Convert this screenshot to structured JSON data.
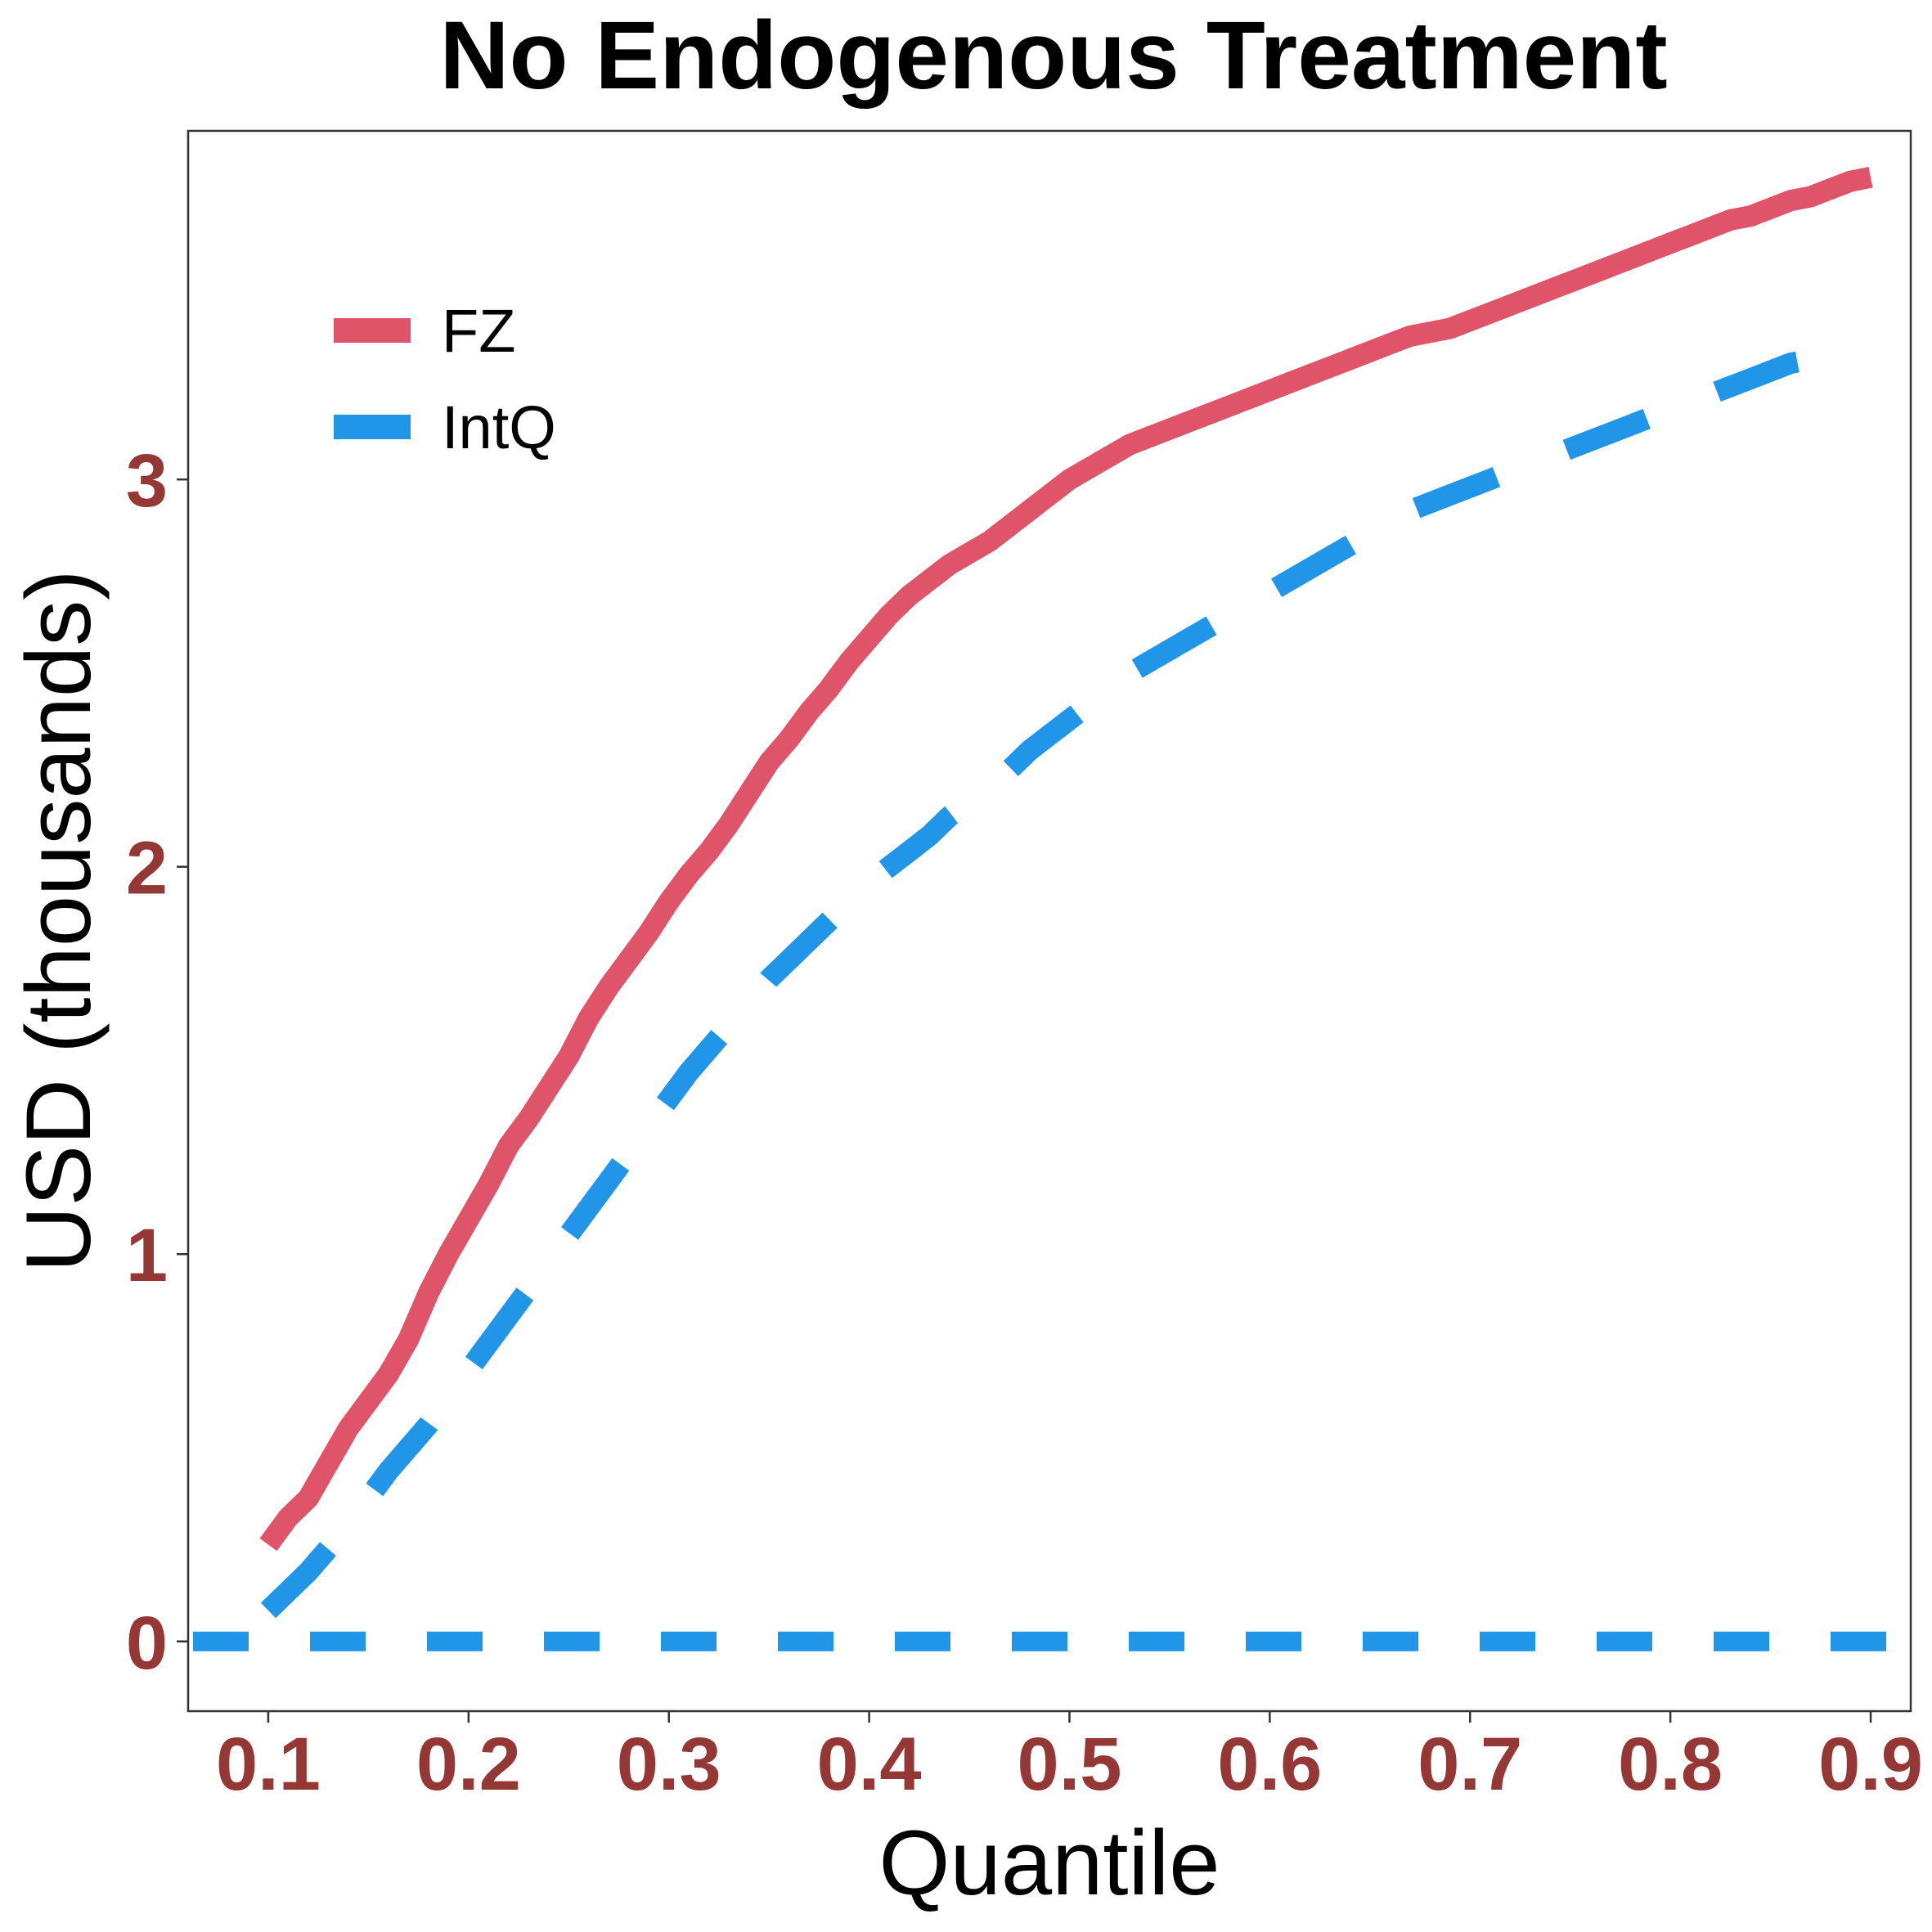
{
  "chart_data": {
    "type": "line",
    "title": "No Endogenous Treatment",
    "xlabel": "Quantile",
    "ylabel": "USD (thousands)",
    "xlim": [
      0.06,
      0.92
    ],
    "ylim": [
      -0.18,
      3.9
    ],
    "xticks": [
      0.1,
      0.2,
      0.3,
      0.4,
      0.5,
      0.6,
      0.7,
      0.8,
      0.9
    ],
    "xtick_labels": [
      "0.1",
      "0.2",
      "0.3",
      "0.4",
      "0.5",
      "0.6",
      "0.7",
      "0.8",
      "0.9"
    ],
    "yticks": [
      0,
      1,
      2,
      3
    ],
    "ytick_labels": [
      "0",
      "1",
      "2",
      "3"
    ],
    "grid": false,
    "legend_position": "top-left",
    "reference_line": {
      "y": 0,
      "style": "dashed",
      "color": "#2196e8"
    },
    "series": [
      {
        "name": "FZ",
        "style": "solid",
        "color": "#e05469",
        "x": [
          0.1,
          0.11,
          0.12,
          0.13,
          0.14,
          0.15,
          0.16,
          0.17,
          0.18,
          0.19,
          0.2,
          0.21,
          0.22,
          0.23,
          0.24,
          0.25,
          0.26,
          0.27,
          0.28,
          0.29,
          0.3,
          0.31,
          0.32,
          0.33,
          0.34,
          0.35,
          0.36,
          0.37,
          0.38,
          0.39,
          0.4,
          0.41,
          0.42,
          0.43,
          0.44,
          0.45,
          0.46,
          0.47,
          0.48,
          0.49,
          0.5,
          0.51,
          0.52,
          0.53,
          0.54,
          0.55,
          0.56,
          0.57,
          0.58,
          0.59,
          0.6,
          0.61,
          0.62,
          0.63,
          0.64,
          0.65,
          0.66,
          0.67,
          0.68,
          0.69,
          0.7,
          0.71,
          0.72,
          0.73,
          0.74,
          0.75,
          0.76,
          0.77,
          0.78,
          0.79,
          0.8,
          0.81,
          0.82,
          0.83,
          0.84,
          0.85,
          0.86,
          0.87,
          0.88,
          0.89,
          0.9
        ],
        "values": [
          0.25,
          0.32,
          0.37,
          0.46,
          0.55,
          0.62,
          0.69,
          0.78,
          0.9,
          1.0,
          1.09,
          1.18,
          1.28,
          1.35,
          1.43,
          1.51,
          1.61,
          1.69,
          1.76,
          1.83,
          1.91,
          1.98,
          2.04,
          2.11,
          2.19,
          2.27,
          2.33,
          2.4,
          2.46,
          2.53,
          2.59,
          2.65,
          2.7,
          2.74,
          2.78,
          2.81,
          2.84,
          2.88,
          2.92,
          2.96,
          3.0,
          3.03,
          3.06,
          3.09,
          3.11,
          3.13,
          3.15,
          3.17,
          3.19,
          3.21,
          3.23,
          3.25,
          3.27,
          3.29,
          3.31,
          3.33,
          3.35,
          3.37,
          3.38,
          3.39,
          3.41,
          3.43,
          3.45,
          3.47,
          3.49,
          3.51,
          3.53,
          3.55,
          3.57,
          3.59,
          3.61,
          3.63,
          3.65,
          3.67,
          3.68,
          3.7,
          3.72,
          3.73,
          3.75,
          3.77,
          3.78
        ]
      },
      {
        "name": "IntQ",
        "style": "dashed",
        "color": "#2196e8",
        "x": [
          0.1,
          0.11,
          0.12,
          0.13,
          0.14,
          0.15,
          0.16,
          0.17,
          0.18,
          0.19,
          0.2,
          0.21,
          0.22,
          0.23,
          0.24,
          0.25,
          0.26,
          0.27,
          0.28,
          0.29,
          0.3,
          0.31,
          0.32,
          0.33,
          0.34,
          0.35,
          0.36,
          0.37,
          0.38,
          0.39,
          0.4,
          0.41,
          0.42,
          0.43,
          0.44,
          0.45,
          0.46,
          0.47,
          0.48,
          0.49,
          0.5,
          0.51,
          0.52,
          0.53,
          0.54,
          0.55,
          0.56,
          0.57,
          0.58,
          0.59,
          0.6,
          0.61,
          0.62,
          0.63,
          0.64,
          0.65,
          0.66,
          0.67,
          0.68,
          0.69,
          0.7,
          0.71,
          0.72,
          0.73,
          0.74,
          0.75,
          0.76,
          0.77,
          0.78,
          0.79,
          0.8,
          0.81,
          0.82,
          0.83,
          0.84,
          0.85,
          0.86,
          0.87,
          0.88,
          0.89,
          0.9
        ],
        "values": [
          0.08,
          0.13,
          0.18,
          0.24,
          0.3,
          0.37,
          0.44,
          0.5,
          0.56,
          0.63,
          0.7,
          0.77,
          0.84,
          0.91,
          0.98,
          1.05,
          1.12,
          1.19,
          1.26,
          1.33,
          1.4,
          1.47,
          1.53,
          1.59,
          1.65,
          1.71,
          1.76,
          1.81,
          1.86,
          1.91,
          1.96,
          2.0,
          2.04,
          2.08,
          2.13,
          2.17,
          2.21,
          2.25,
          2.3,
          2.34,
          2.38,
          2.42,
          2.46,
          2.5,
          2.53,
          2.56,
          2.59,
          2.62,
          2.65,
          2.68,
          2.71,
          2.74,
          2.77,
          2.8,
          2.83,
          2.86,
          2.89,
          2.92,
          2.94,
          2.96,
          2.98,
          3.0,
          3.02,
          3.04,
          3.06,
          3.08,
          3.1,
          3.12,
          3.14,
          3.16,
          3.18,
          3.2,
          3.22,
          3.24,
          3.26,
          3.28,
          3.3,
          3.31,
          3.32,
          3.33,
          3.34
        ]
      }
    ]
  }
}
